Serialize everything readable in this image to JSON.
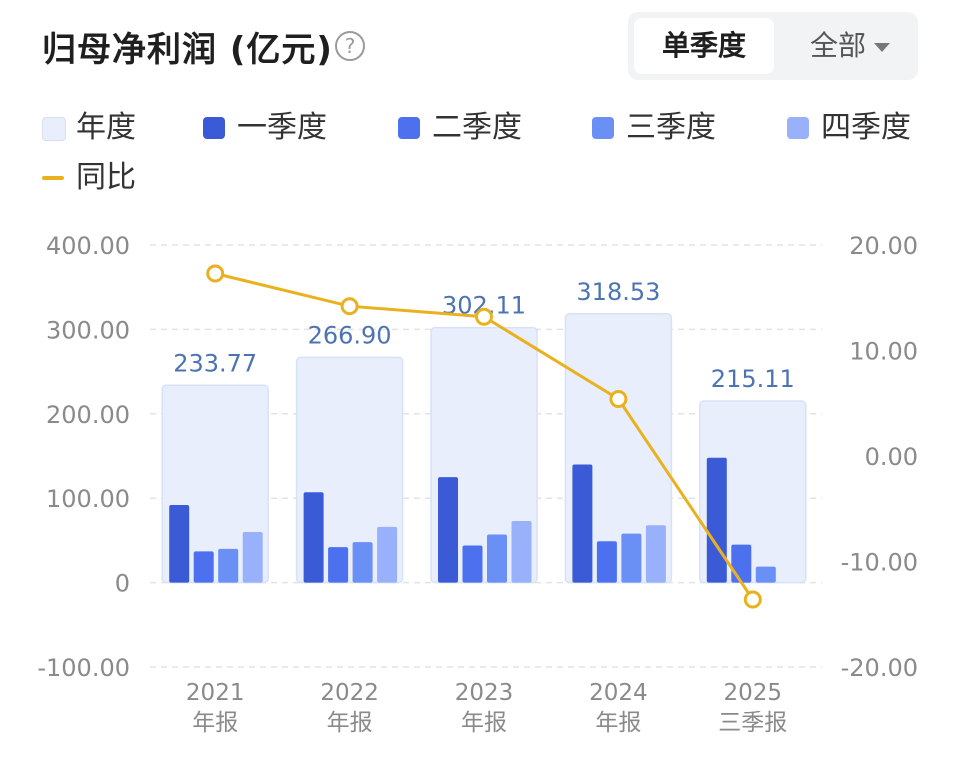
{
  "header": {
    "title": "归母净利润 (亿元)",
    "help_icon": "question-circle-icon",
    "toggle": {
      "active": "单季度",
      "other": "全部"
    }
  },
  "legend": [
    {
      "label": "年度",
      "color": "#e8eefb",
      "kind": "box"
    },
    {
      "label": "一季度",
      "color": "#3b5bd6",
      "kind": "box"
    },
    {
      "label": "二季度",
      "color": "#4d70ef",
      "kind": "box"
    },
    {
      "label": "三季度",
      "color": "#6a8ff5",
      "kind": "box"
    },
    {
      "label": "四季度",
      "color": "#98b1fa",
      "kind": "box"
    },
    {
      "label": "同比",
      "color": "#eab11f",
      "kind": "line"
    }
  ],
  "chart_data": {
    "type": "bar",
    "categories": [
      {
        "line1": "2021",
        "line2": "年报"
      },
      {
        "line1": "2022",
        "line2": "年报"
      },
      {
        "line1": "2023",
        "line2": "年报"
      },
      {
        "line1": "2024",
        "line2": "年报"
      },
      {
        "line1": "2025",
        "line2": "三季报"
      }
    ],
    "annual": [
      233.77,
      266.9,
      302.11,
      318.53,
      215.11
    ],
    "annual_labels": [
      "233.77",
      "266.90",
      "302.11",
      "318.53",
      "215.11"
    ],
    "quarters": [
      [
        92,
        37,
        40,
        60
      ],
      [
        107,
        42,
        48,
        66
      ],
      [
        125,
        44,
        57,
        73
      ],
      [
        140,
        49,
        58,
        68
      ],
      [
        148,
        45,
        19
      ]
    ],
    "yoy": [
      17.3,
      14.2,
      13.2,
      5.4,
      -13.6
    ],
    "y_left": {
      "min": -100,
      "max": 400,
      "ticks": [
        "400.00",
        "300.00",
        "200.00",
        "100.00",
        "0",
        "-100.00"
      ],
      "tick_values": [
        400,
        300,
        200,
        100,
        0,
        -100
      ]
    },
    "y_right": {
      "min": -20,
      "max": 20,
      "ticks": [
        "20.00",
        "10.00",
        "0.00",
        "-10.00",
        "-20.00"
      ],
      "tick_values": [
        20,
        10,
        0,
        -10,
        -20
      ]
    },
    "grid": true,
    "colors": {
      "annual": "#e8eefb",
      "annual_border": "#d8e2f7",
      "q": [
        "#3b5bd6",
        "#4d70ef",
        "#6a8ff5",
        "#98b1fa"
      ],
      "yoy": "#eab11f",
      "annual_label": "#4d73b3",
      "axis_label": "#8a8a8a",
      "grid": "#e3e3e3"
    }
  }
}
